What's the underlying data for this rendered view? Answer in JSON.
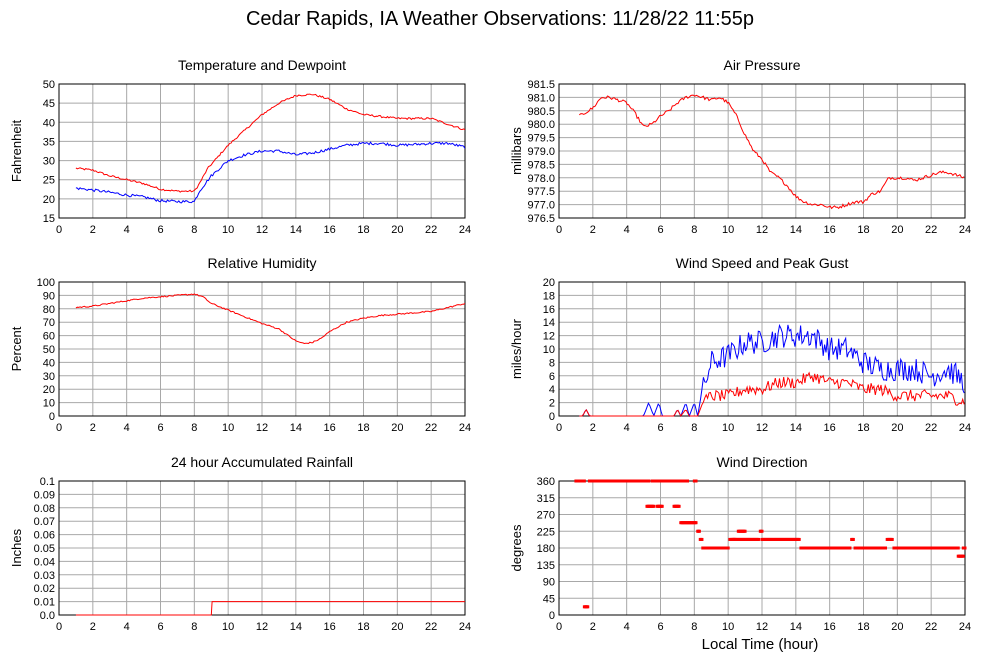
{
  "title": "Cedar Rapids, IA Weather Observations: 11/28/22 11:55p",
  "x_axis_title": "Local Time (hour)",
  "colors": {
    "red": "#ff0000",
    "blue": "#0000ff"
  },
  "chart_data": [
    {
      "id": "temperature",
      "type": "line",
      "title": "Temperature and Dewpoint",
      "ylabel": "Fahrenheit",
      "xlim": [
        0,
        24
      ],
      "ylim": [
        15,
        50
      ],
      "x_ticks": [
        0,
        2,
        4,
        6,
        8,
        10,
        12,
        14,
        16,
        18,
        20,
        22,
        24
      ],
      "y_ticks": [
        15,
        20,
        25,
        30,
        35,
        40,
        45,
        50
      ],
      "series": [
        {
          "color": "#ff0000",
          "noise": 0.25,
          "points": [
            [
              1,
              28
            ],
            [
              2,
              27.5
            ],
            [
              3,
              26
            ],
            [
              4,
              25
            ],
            [
              5,
              24
            ],
            [
              6,
              22.5
            ],
            [
              7,
              22
            ],
            [
              8,
              22
            ],
            [
              8.3,
              24
            ],
            [
              8.8,
              28
            ],
            [
              10,
              34
            ],
            [
              11,
              38
            ],
            [
              12,
              42
            ],
            [
              13,
              45
            ],
            [
              14,
              47
            ],
            [
              15,
              47.3
            ],
            [
              16,
              46
            ],
            [
              17,
              43.5
            ],
            [
              18,
              42
            ],
            [
              19,
              41.5
            ],
            [
              20,
              41
            ],
            [
              21,
              41
            ],
            [
              22,
              41
            ],
            [
              23,
              39.5
            ],
            [
              24,
              38
            ]
          ]
        },
        {
          "color": "#0000ff",
          "noise": 0.35,
          "points": [
            [
              1,
              22.8
            ],
            [
              2,
              22.3
            ],
            [
              3,
              21.7
            ],
            [
              4,
              21
            ],
            [
              5,
              20.5
            ],
            [
              6,
              19.5
            ],
            [
              7,
              19.3
            ],
            [
              8,
              19.3
            ],
            [
              8.3,
              22
            ],
            [
              9,
              26
            ],
            [
              10,
              30
            ],
            [
              11,
              31.5
            ],
            [
              12,
              32.5
            ],
            [
              13,
              32.5
            ],
            [
              14,
              31.5
            ],
            [
              15,
              32
            ],
            [
              16,
              33
            ],
            [
              17,
              34
            ],
            [
              18,
              34.5
            ],
            [
              19,
              34.5
            ],
            [
              20,
              34
            ],
            [
              21,
              34.2
            ],
            [
              22,
              34.5
            ],
            [
              23,
              34.5
            ],
            [
              24,
              33.5
            ]
          ]
        }
      ]
    },
    {
      "id": "pressure",
      "type": "line",
      "title": "Air Pressure",
      "ylabel": "millibars",
      "xlim": [
        0,
        24
      ],
      "ylim": [
        976.5,
        981.5
      ],
      "x_ticks": [
        0,
        2,
        4,
        6,
        8,
        10,
        12,
        14,
        16,
        18,
        20,
        22,
        24
      ],
      "y_ticks": [
        976.5,
        977.0,
        977.5,
        978.0,
        978.5,
        979.0,
        979.5,
        980.0,
        980.5,
        981.0,
        981.5
      ],
      "y_tick_labels": [
        "976.5",
        "977.0",
        "977.5",
        "978.0",
        "978.5",
        "979.0",
        "979.5",
        "980.0",
        "980.5",
        "981.0",
        "981.5"
      ],
      "series": [
        {
          "color": "#ff0000",
          "noise": 0.06,
          "points": [
            [
              1.2,
              980.3
            ],
            [
              2,
              980.6
            ],
            [
              2.5,
              981.0
            ],
            [
              3,
              981.0
            ],
            [
              3.5,
              980.9
            ],
            [
              4,
              980.8
            ],
            [
              4.5,
              980.4
            ],
            [
              5,
              979.9
            ],
            [
              5.5,
              980.0
            ],
            [
              6,
              980.3
            ],
            [
              6.5,
              980.5
            ],
            [
              7,
              980.8
            ],
            [
              7.5,
              981.0
            ],
            [
              8,
              981.1
            ],
            [
              8.5,
              981.0
            ],
            [
              9,
              980.9
            ],
            [
              9.5,
              981.0
            ],
            [
              10,
              980.8
            ],
            [
              10.5,
              980.3
            ],
            [
              11,
              979.6
            ],
            [
              11.5,
              979.0
            ],
            [
              12,
              978.7
            ],
            [
              12.5,
              978.2
            ],
            [
              13,
              978.0
            ],
            [
              13.5,
              977.7
            ],
            [
              14,
              977.3
            ],
            [
              14.5,
              977.1
            ],
            [
              15,
              977.0
            ],
            [
              15.5,
              977.0
            ],
            [
              16,
              976.9
            ],
            [
              16.5,
              976.9
            ],
            [
              17,
              977.0
            ],
            [
              17.5,
              977.1
            ],
            [
              18,
              977.1
            ],
            [
              18.5,
              977.4
            ],
            [
              19,
              977.5
            ],
            [
              19.5,
              978.0
            ],
            [
              20,
              978.0
            ],
            [
              20.5,
              978.0
            ],
            [
              21,
              977.9
            ],
            [
              21.5,
              978.0
            ],
            [
              22,
              978.1
            ],
            [
              22.5,
              978.2
            ],
            [
              23,
              978.2
            ],
            [
              23.5,
              978.1
            ],
            [
              24,
              978.0
            ]
          ]
        }
      ]
    },
    {
      "id": "humidity",
      "type": "line",
      "title": "Relative Humidity",
      "ylabel": "Percent",
      "xlim": [
        0,
        24
      ],
      "ylim": [
        0,
        100
      ],
      "x_ticks": [
        0,
        2,
        4,
        6,
        8,
        10,
        12,
        14,
        16,
        18,
        20,
        22,
        24
      ],
      "y_ticks": [
        0,
        10,
        20,
        30,
        40,
        50,
        60,
        70,
        80,
        90,
        100
      ],
      "series": [
        {
          "color": "#ff0000",
          "noise": 0.5,
          "points": [
            [
              1,
              81
            ],
            [
              2,
              82
            ],
            [
              3,
              84
            ],
            [
              4,
              86
            ],
            [
              5,
              88
            ],
            [
              6,
              89
            ],
            [
              7,
              90
            ],
            [
              8,
              91
            ],
            [
              8.5,
              89
            ],
            [
              9,
              84
            ],
            [
              10,
              79
            ],
            [
              11,
              74
            ],
            [
              12,
              69
            ],
            [
              13,
              65
            ],
            [
              14,
              56
            ],
            [
              14.5,
              54
            ],
            [
              15,
              55
            ],
            [
              15.5,
              58
            ],
            [
              16,
              63
            ],
            [
              17,
              70
            ],
            [
              18,
              73
            ],
            [
              19,
              75
            ],
            [
              20,
              76
            ],
            [
              21,
              77
            ],
            [
              22,
              78
            ],
            [
              23,
              81
            ],
            [
              24,
              84
            ]
          ]
        }
      ]
    },
    {
      "id": "wind",
      "type": "line",
      "title": "Wind Speed and Peak Gust",
      "ylabel": "miles/hour",
      "xlim": [
        0,
        24
      ],
      "ylim": [
        0,
        20
      ],
      "x_ticks": [
        0,
        2,
        4,
        6,
        8,
        10,
        12,
        14,
        16,
        18,
        20,
        22,
        24
      ],
      "y_ticks": [
        0,
        2,
        4,
        6,
        8,
        10,
        12,
        14,
        16,
        18,
        20
      ],
      "series": [
        {
          "color": "#0000ff",
          "noise": 1.8,
          "noise_from": 8.4,
          "points": [
            [
              1.2,
              0
            ],
            [
              1.4,
              0
            ],
            [
              1.6,
              1
            ],
            [
              1.8,
              0
            ],
            [
              2,
              0
            ],
            [
              4.5,
              0
            ],
            [
              5,
              0
            ],
            [
              5.3,
              2
            ],
            [
              5.6,
              0
            ],
            [
              5.9,
              2
            ],
            [
              6.1,
              0
            ],
            [
              6.8,
              0
            ],
            [
              7,
              1
            ],
            [
              7.2,
              0
            ],
            [
              7.5,
              2
            ],
            [
              7.7,
              0
            ],
            [
              8,
              2
            ],
            [
              8.2,
              0
            ],
            [
              8.4,
              3
            ],
            [
              9,
              8
            ],
            [
              10,
              9
            ],
            [
              11,
              11
            ],
            [
              12,
              11
            ],
            [
              13,
              12
            ],
            [
              14,
              12
            ],
            [
              15,
              12
            ],
            [
              16,
              10
            ],
            [
              17,
              10
            ],
            [
              18,
              8
            ],
            [
              19,
              7
            ],
            [
              20,
              7
            ],
            [
              21,
              7
            ],
            [
              22,
              6
            ],
            [
              23,
              7
            ],
            [
              24,
              5
            ]
          ]
        },
        {
          "color": "#ff0000",
          "noise": 0.9,
          "noise_from": 8.6,
          "points": [
            [
              1.2,
              0
            ],
            [
              1.4,
              0
            ],
            [
              1.6,
              1
            ],
            [
              1.8,
              0
            ],
            [
              2,
              0
            ],
            [
              6.8,
              0
            ],
            [
              7,
              1
            ],
            [
              7.2,
              0
            ],
            [
              7.5,
              1
            ],
            [
              7.7,
              0
            ],
            [
              8.2,
              0
            ],
            [
              8.5,
              2
            ],
            [
              9,
              3
            ],
            [
              10,
              3
            ],
            [
              11,
              4
            ],
            [
              12,
              4
            ],
            [
              13,
              5
            ],
            [
              14,
              5
            ],
            [
              15,
              6
            ],
            [
              16,
              5
            ],
            [
              17,
              5
            ],
            [
              18,
              4
            ],
            [
              19,
              4
            ],
            [
              20,
              3
            ],
            [
              21,
              3
            ],
            [
              22,
              3
            ],
            [
              23,
              3
            ],
            [
              24,
              2
            ]
          ]
        }
      ]
    },
    {
      "id": "rainfall",
      "type": "line",
      "title": "24 hour Accumulated Rainfall",
      "ylabel": "Inches",
      "xlim": [
        0,
        24
      ],
      "ylim": [
        0,
        0.1
      ],
      "x_ticks": [
        0,
        2,
        4,
        6,
        8,
        10,
        12,
        14,
        16,
        18,
        20,
        22,
        24
      ],
      "y_ticks": [
        0,
        0.01,
        0.02,
        0.03,
        0.04,
        0.05,
        0.06,
        0.07,
        0.08,
        0.09,
        0.1
      ],
      "y_tick_labels": [
        "0.0",
        "0.01",
        "0.02",
        "0.03",
        "0.04",
        "0.05",
        "0.06",
        "0.07",
        "0.08",
        "0.09",
        "0.1"
      ],
      "series": [
        {
          "color": "#ff0000",
          "noise": 0,
          "points": [
            [
              1,
              0
            ],
            [
              9,
              0
            ],
            [
              9.05,
              0.01
            ],
            [
              24,
              0.01
            ]
          ]
        }
      ]
    },
    {
      "id": "direction",
      "type": "scatter",
      "title": "Wind Direction",
      "ylabel": "degrees",
      "xlim": [
        0,
        24
      ],
      "ylim": [
        0,
        360
      ],
      "x_ticks": [
        0,
        2,
        4,
        6,
        8,
        10,
        12,
        14,
        16,
        18,
        20,
        22,
        24
      ],
      "y_ticks": [
        0,
        45,
        90,
        135,
        180,
        225,
        270,
        315,
        360
      ],
      "series": [
        {
          "color": "#ff0000",
          "runs": [
            [
              1.0,
              1.5,
              360
            ],
            [
              1.8,
              5.3,
              360
            ],
            [
              5.5,
              6.7,
              360
            ],
            [
              6.8,
              7.6,
              360
            ],
            [
              8.0,
              8.1,
              360
            ],
            [
              5.2,
              5.6,
              292
            ],
            [
              5.8,
              6.1,
              292
            ],
            [
              6.8,
              7.1,
              292
            ],
            [
              7.2,
              8.1,
              248
            ],
            [
              8.2,
              8.3,
              225
            ],
            [
              8.35,
              8.45,
              203
            ],
            [
              8.5,
              10.0,
              180
            ],
            [
              10.1,
              10.4,
              203
            ],
            [
              10.6,
              11.0,
              225
            ],
            [
              10.3,
              11.8,
              203
            ],
            [
              11.9,
              12.0,
              225
            ],
            [
              12.0,
              14.2,
              203
            ],
            [
              14.3,
              17.2,
              180
            ],
            [
              17.3,
              17.4,
              203
            ],
            [
              17.5,
              19.3,
              180
            ],
            [
              19.4,
              19.7,
              203
            ],
            [
              19.8,
              23.6,
              180
            ],
            [
              23.6,
              23.9,
              158
            ],
            [
              23.9,
              24.0,
              180
            ],
            [
              1.5,
              1.7,
              22
            ]
          ]
        }
      ]
    }
  ]
}
